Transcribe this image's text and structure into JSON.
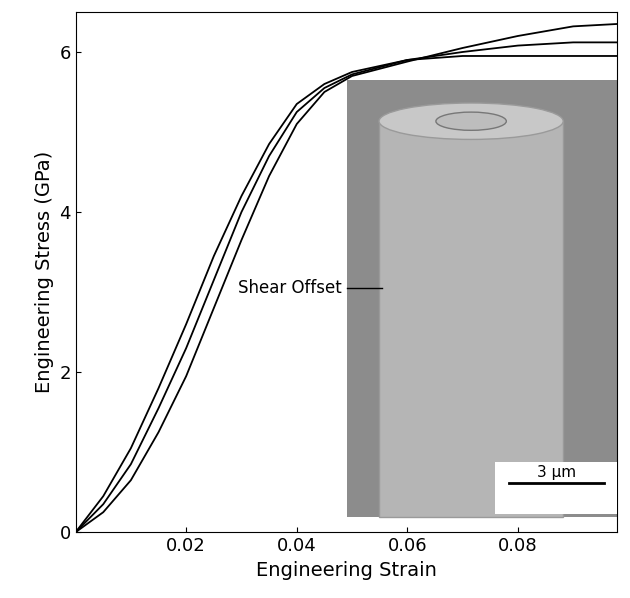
{
  "chart_data": {
    "type": "line",
    "x_label": "Engineering Strain",
    "y_label": "Engineering Stress (GPa)",
    "x": [
      0,
      0.005,
      0.01,
      0.015,
      0.02,
      0.025,
      0.03,
      0.035,
      0.04,
      0.045,
      0.05,
      0.06,
      0.07,
      0.08,
      0.09,
      0.098
    ],
    "series": [
      {
        "color": "#000000",
        "values": [
          0,
          0.45,
          1.05,
          1.8,
          2.6,
          3.45,
          4.2,
          4.85,
          5.35,
          5.6,
          5.75,
          5.9,
          5.95,
          5.95,
          5.95,
          5.95
        ]
      },
      {
        "color": "#000000",
        "values": [
          0,
          0.35,
          0.85,
          1.55,
          2.3,
          3.15,
          4.0,
          4.7,
          5.25,
          5.55,
          5.72,
          5.9,
          6.0,
          6.08,
          6.12,
          6.12
        ]
      },
      {
        "color": "#000000",
        "values": [
          0,
          0.25,
          0.65,
          1.25,
          1.95,
          2.8,
          3.65,
          4.45,
          5.1,
          5.5,
          5.7,
          5.88,
          6.05,
          6.2,
          6.32,
          6.35
        ]
      }
    ],
    "xlim": [
      0,
      0.098
    ],
    "ylim": [
      0,
      6.5
    ],
    "xticks": [
      0.02,
      0.04,
      0.06,
      0.08
    ],
    "yticks": [
      0,
      2,
      4,
      6
    ],
    "grid": false,
    "inset": {
      "label": "Shear Offset",
      "scale_bar": "3 µm"
    }
  }
}
